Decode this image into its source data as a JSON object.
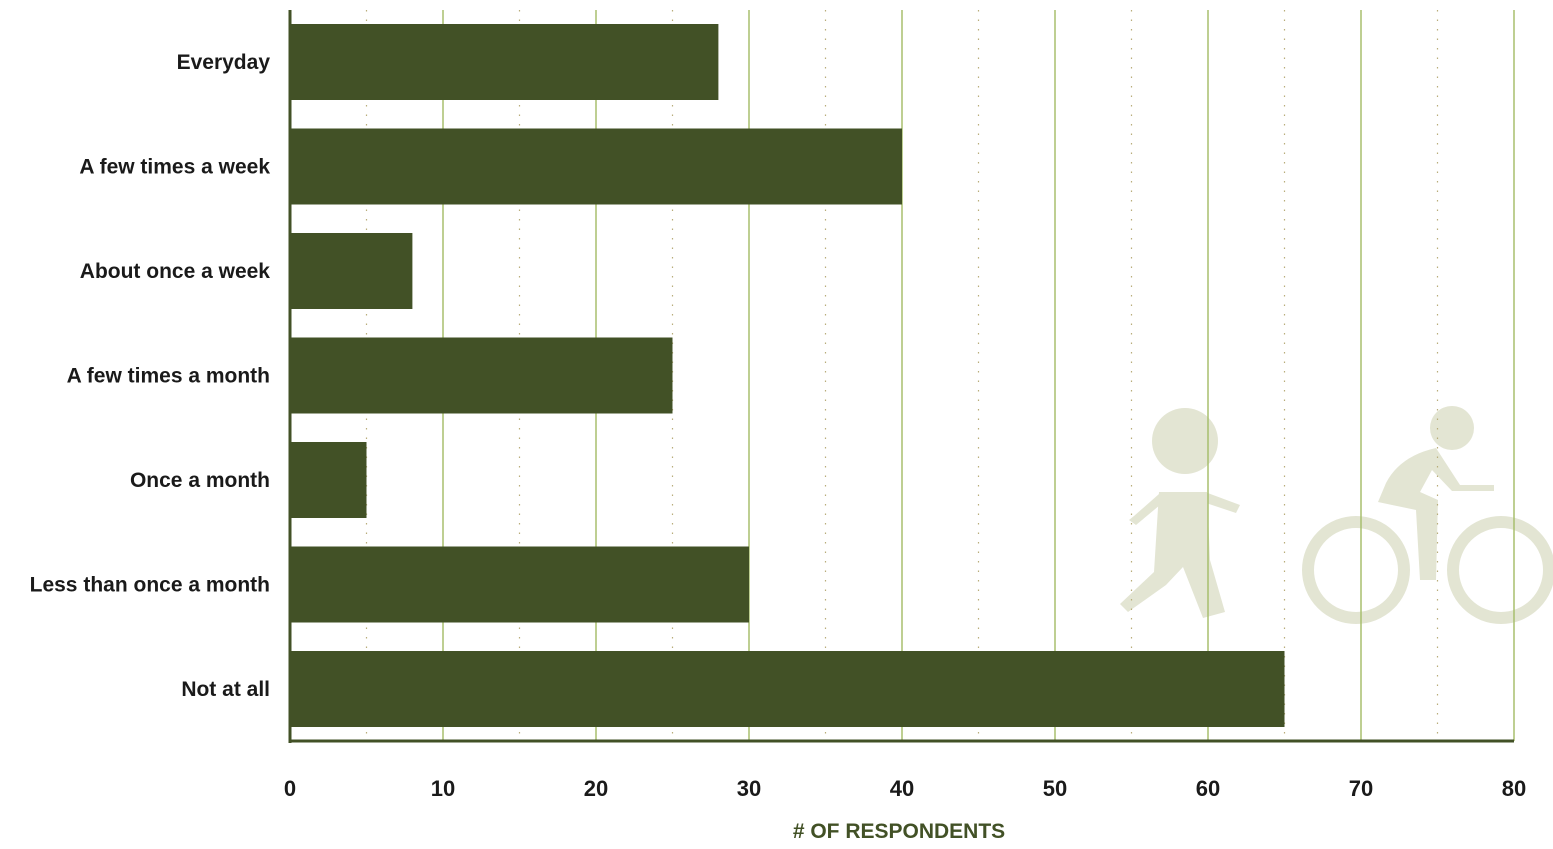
{
  "chart_data": {
    "type": "bar",
    "orientation": "horizontal",
    "categories": [
      "Everyday",
      "A few times a week",
      "About once a week",
      "A few times a month",
      "Once a month",
      "Less than once a month",
      "Not at all"
    ],
    "values": [
      28,
      40,
      8,
      25,
      5,
      30,
      65
    ],
    "xlabel": "# OF RESPONDENTS",
    "ylabel": "",
    "title": "",
    "xlim": [
      0,
      80
    ],
    "xticks": [
      0,
      10,
      20,
      30,
      40,
      50,
      60,
      70,
      80
    ],
    "minor_gridlines_every": 5,
    "grid": true,
    "legend": "none"
  },
  "colors": {
    "bar": "#425126",
    "axis": "#425126",
    "major_grid": "#a8bf6e",
    "minor_grid": "#b8ad7a",
    "axis_title": "#425126",
    "decoration": "#e3e5d3"
  },
  "decorations": {
    "icons": [
      "walking-person-icon",
      "cyclist-icon"
    ]
  }
}
